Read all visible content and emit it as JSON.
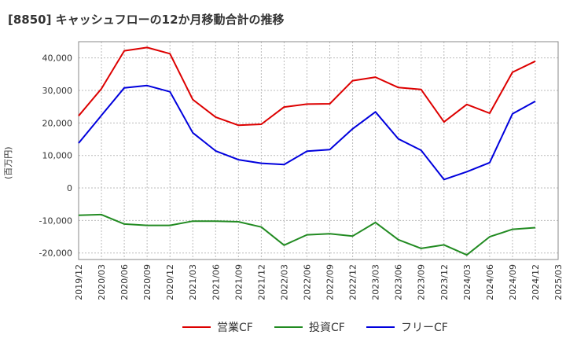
{
  "chart_data": {
    "type": "line",
    "title": "[8850]  キャッシュフローの12か月移動合計の推移",
    "ylabel": "(百万円)",
    "xlabel": "",
    "x": [
      "2019/12",
      "2020/03",
      "2020/06",
      "2020/09",
      "2020/12",
      "2021/03",
      "2021/06",
      "2021/09",
      "2021/12",
      "2022/03",
      "2022/06",
      "2022/09",
      "2022/12",
      "2023/03",
      "2023/06",
      "2023/09",
      "2023/12",
      "2024/03",
      "2024/06",
      "2024/09",
      "2024/12",
      "2025/03"
    ],
    "ylim": [
      -22000,
      45000
    ],
    "yticks": [
      -20000,
      -10000,
      0,
      10000,
      20000,
      30000,
      40000
    ],
    "ytick_labels": [
      "-20,000",
      "-10,000",
      "0",
      "10,000",
      "20,000",
      "30,000",
      "40,000"
    ],
    "grid": true,
    "legend_position": "bottom",
    "series": [
      {
        "name": "営業CF",
        "color": "#dd0000",
        "values": [
          22200,
          30500,
          42200,
          43200,
          41300,
          27200,
          21800,
          19300,
          19600,
          24900,
          25800,
          25900,
          33000,
          34100,
          30900,
          30300,
          20300,
          25700,
          23000,
          35600,
          39000,
          null
        ]
      },
      {
        "name": "投資CF",
        "color": "#228b22",
        "values": [
          -8400,
          -8200,
          -11100,
          -11500,
          -11500,
          -10200,
          -10200,
          -10400,
          -12000,
          -17600,
          -14400,
          -14100,
          -14800,
          -10600,
          -15900,
          -18600,
          -17500,
          -20600,
          -15000,
          -12700,
          -12200,
          null
        ]
      },
      {
        "name": "フリーCF",
        "color": "#0000dd",
        "values": [
          13800,
          22300,
          30800,
          31500,
          29600,
          17000,
          11400,
          8700,
          7600,
          7200,
          11300,
          11800,
          18200,
          23400,
          15100,
          11600,
          2600,
          5000,
          7800,
          22800,
          26700,
          null
        ]
      }
    ]
  }
}
